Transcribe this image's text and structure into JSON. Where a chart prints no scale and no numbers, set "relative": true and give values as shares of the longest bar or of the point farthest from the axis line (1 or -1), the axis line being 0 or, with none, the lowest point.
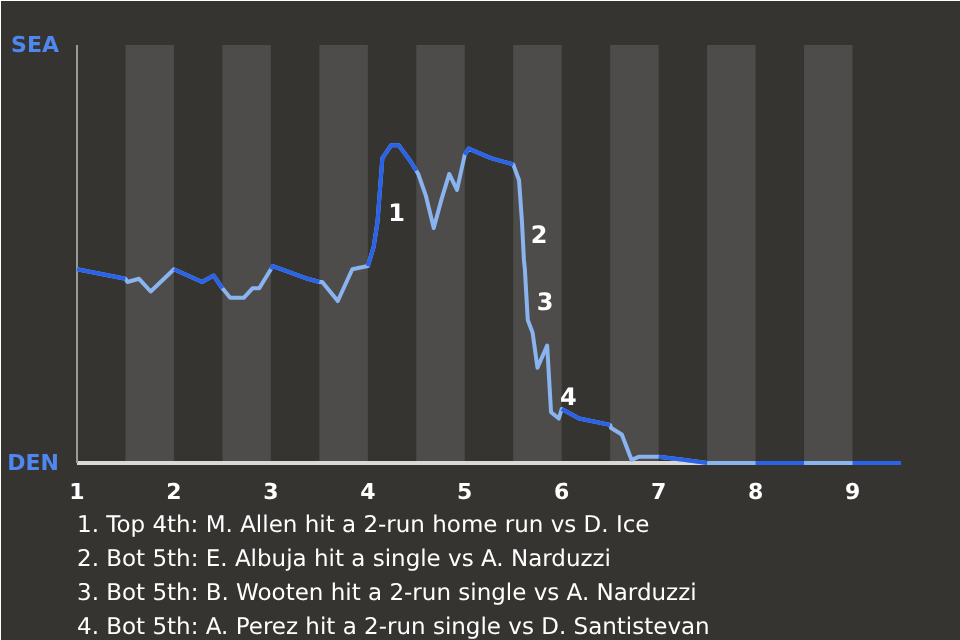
{
  "chart_data": {
    "type": "line",
    "relative": true,
    "x": [
      1.0,
      1.5,
      1.52,
      1.64,
      1.76,
      2.0,
      2.29,
      2.41,
      2.5,
      2.58,
      2.72,
      2.81,
      2.88,
      3.0,
      3.02,
      3.38,
      3.5,
      3.53,
      3.69,
      3.84,
      4.0,
      4.06,
      4.1,
      4.15,
      4.24,
      4.32,
      4.44,
      4.5,
      4.52,
      4.6,
      4.68,
      4.76,
      4.84,
      4.92,
      5.0,
      5.04,
      5.27,
      5.5,
      5.56,
      5.59,
      5.61,
      5.62,
      5.65,
      5.7,
      5.75,
      5.85,
      5.89,
      5.97,
      6.0,
      6.18,
      6.5,
      6.51,
      6.62,
      6.72,
      6.8,
      7.0,
      7.25,
      7.5,
      7.71,
      8.0,
      8.25,
      8.5,
      8.7,
      9.0,
      9.5
    ],
    "series": [
      {
        "color": "#8ab4f0",
        "values": [
          0.61,
          0.58,
          0.57,
          0.58,
          0.54,
          0.61,
          0.57,
          0.59,
          0.55,
          0.52,
          0.52,
          0.55,
          0.55,
          0.61,
          0.62,
          0.58,
          0.57,
          0.57,
          0.51,
          0.61,
          0.62,
          0.68,
          0.76,
          0.96,
          1,
          1,
          0.95,
          0.92,
          0.91,
          0.84,
          0.74,
          0.83,
          0.91,
          0.86,
          0.97,
          0.99,
          0.96,
          0.94,
          0.89,
          0.76,
          0.64,
          0.61,
          0.45,
          0.41,
          0.3,
          0.37,
          0.16,
          0.14,
          0.17,
          0.14,
          0.12,
          0.11,
          0.09,
          0.01,
          0.02,
          0.02,
          0.01,
          0,
          0,
          0,
          0,
          0,
          0,
          0,
          0
        ]
      },
      {
        "color": "#2a63e8",
        "values": [
          0.61,
          0.58,
          null,
          null,
          null,
          0.61,
          0.57,
          0.59,
          0.55,
          null,
          null,
          null,
          null,
          0.61,
          0.62,
          0.58,
          0.57,
          null,
          null,
          null,
          0.62,
          0.68,
          0.76,
          0.96,
          1,
          1,
          0.95,
          0.92,
          null,
          null,
          null,
          null,
          null,
          null,
          0.97,
          0.99,
          0.96,
          0.94,
          null,
          null,
          null,
          null,
          null,
          null,
          null,
          null,
          null,
          null,
          0.17,
          0.14,
          0.12,
          null,
          null,
          null,
          null,
          0.02,
          0.01,
          0,
          null,
          0,
          0,
          0,
          null,
          0,
          0
        ]
      }
    ],
    "xlim": [
      1,
      9.5
    ],
    "xticks": [
      1,
      2,
      3,
      4,
      5,
      6,
      7,
      8,
      9
    ],
    "bands": [
      {
        "axis": "x",
        "from": 1.5,
        "to": 2,
        "color": "#4d4c4a"
      },
      {
        "axis": "x",
        "from": 2.5,
        "to": 3,
        "color": "#4d4c4a"
      },
      {
        "axis": "x",
        "from": 3.5,
        "to": 4,
        "color": "#4d4c4a"
      },
      {
        "axis": "x",
        "from": 4.5,
        "to": 5,
        "color": "#4d4c4a"
      },
      {
        "axis": "x",
        "from": 5.5,
        "to": 6,
        "color": "#4d4c4a"
      },
      {
        "axis": "x",
        "from": 6.5,
        "to": 7,
        "color": "#4d4c4a"
      },
      {
        "axis": "x",
        "from": 7.5,
        "to": 8,
        "color": "#4d4c4a"
      },
      {
        "axis": "x",
        "from": 8.5,
        "to": 9,
        "color": "#4d4c4a"
      }
    ],
    "annotations": [
      "SEA",
      "DEN",
      {
        "text": "1",
        "x": 4.15,
        "y": 0.79
      },
      {
        "text": "2",
        "x": 5.62,
        "y": 0.72
      },
      {
        "text": "3",
        "x": 5.68,
        "y": 0.51
      },
      {
        "text": "4",
        "x": 5.92,
        "y": 0.21
      },
      "1. Top 4th: M. Allen hit a 2-run home run vs D. Ice",
      "2. Bot 5th: E. Albuja hit a single vs A. Narduzzi",
      "3. Bot 5th: B. Wooten hit a 2-run single vs A. Narduzzi",
      "4. Bot 5th: A. Perez hit a 2-run single vs D. Santistevan"
    ]
  }
}
